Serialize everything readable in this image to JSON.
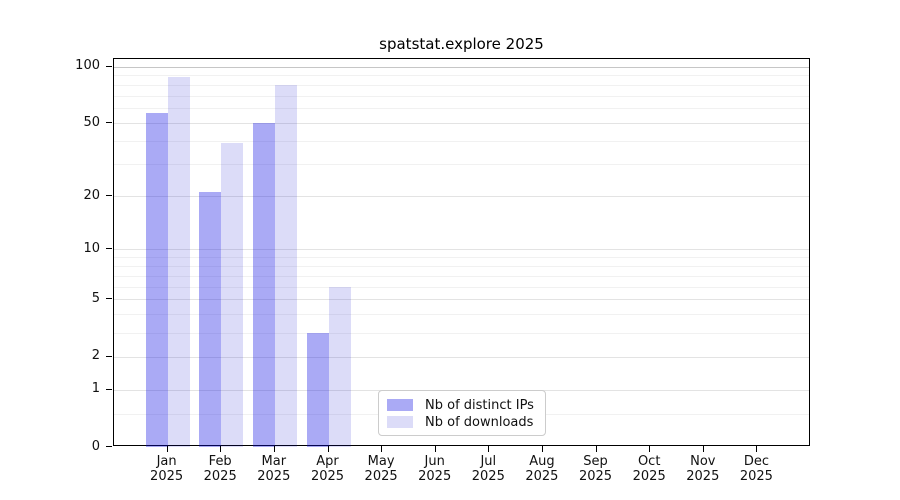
{
  "figure": {
    "title": "spatstat.explore 2025"
  },
  "chart_data": {
    "type": "bar",
    "title": "spatstat.explore 2025",
    "categories": [
      "Jan",
      "Feb",
      "Mar",
      "Apr",
      "May",
      "Jun",
      "Jul",
      "Aug",
      "Sep",
      "Oct",
      "Nov",
      "Dec"
    ],
    "year": "2025",
    "series": [
      {
        "name": "Nb of distinct IPs",
        "color": "#0c0ce2",
        "opacity": 0.35,
        "values": [
          57,
          21,
          50,
          3,
          0,
          0,
          0,
          0,
          0,
          0,
          0,
          0
        ]
      },
      {
        "name": "Nb of downloads",
        "color": "#1616d0",
        "opacity": 0.15,
        "values": [
          88,
          39,
          80,
          6,
          0,
          0,
          0,
          0,
          0,
          0,
          0,
          0
        ]
      }
    ],
    "yscale": "log1p",
    "ymax": 110,
    "yticks": [
      0,
      1,
      2,
      5,
      10,
      20,
      50,
      100
    ],
    "yticks_minor": [
      0.5,
      3,
      4,
      6,
      7,
      8,
      9,
      30,
      40,
      60,
      70,
      80,
      90
    ],
    "grid": true,
    "legend_position": "lower-center"
  }
}
